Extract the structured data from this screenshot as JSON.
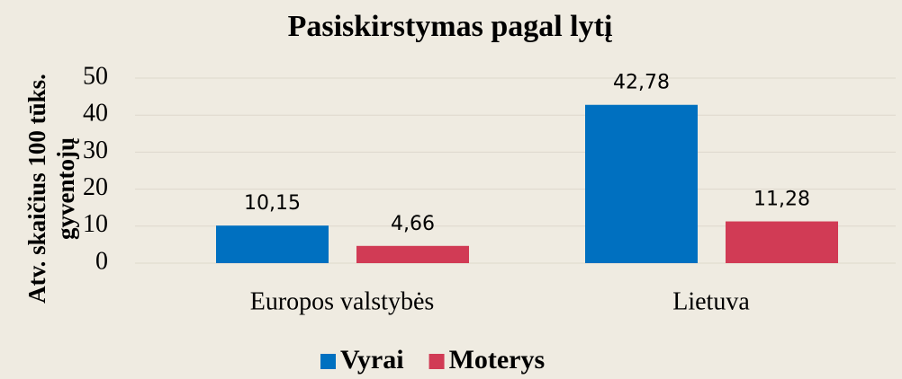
{
  "chart_data": {
    "type": "bar",
    "title": "Pasiskirstymas pagal lytį",
    "y_label": [
      "Atv. skaičius 100 tūks.",
      "gyventojų"
    ],
    "categories": [
      "Europos valstybės",
      "Lietuva"
    ],
    "series": [
      {
        "name": "Vyrai",
        "color": "#0070c0",
        "values": [
          10.15,
          42.78
        ],
        "value_labels": [
          "10,15",
          "42,78"
        ]
      },
      {
        "name": "Moterys",
        "color": "#d13b55",
        "values": [
          4.66,
          11.28
        ],
        "value_labels": [
          "4,66",
          "11,28"
        ]
      }
    ],
    "ylim": [
      0,
      50
    ],
    "yticks": [
      0,
      10,
      20,
      30,
      40,
      50
    ],
    "grid": true,
    "legend": "bottom"
  }
}
